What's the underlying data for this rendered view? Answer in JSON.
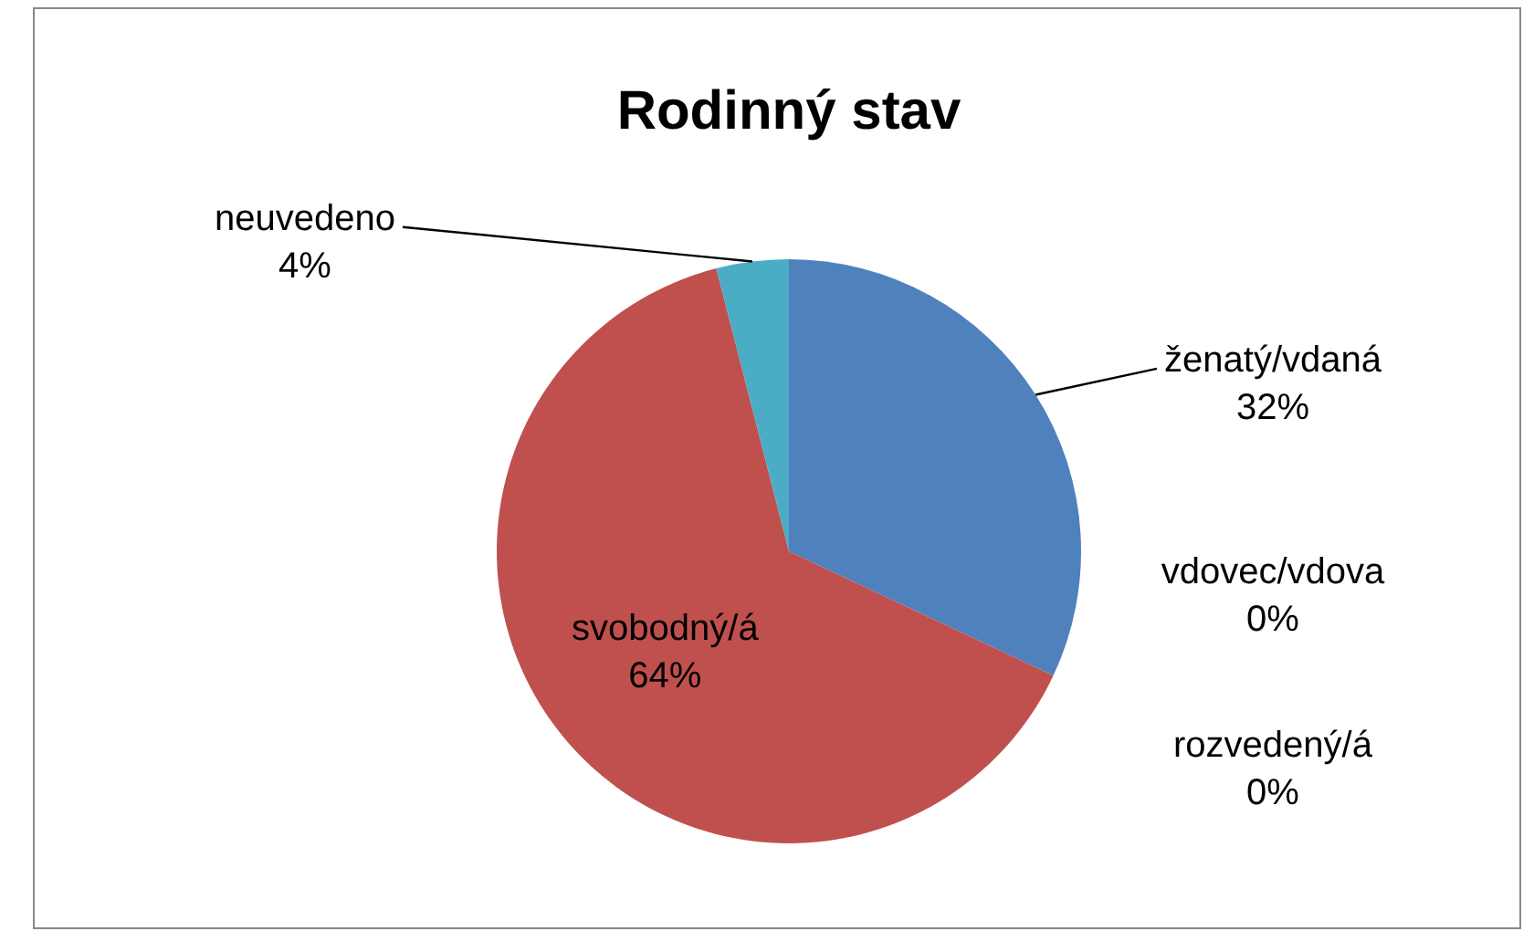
{
  "chart_data": {
    "type": "pie",
    "title": "Rodinný stav",
    "categories": [
      "ženatý/vdaná",
      "vdovec/vdova",
      "rozvedený/á",
      "svobodný/á",
      "neuvedeno"
    ],
    "values": [
      32,
      0,
      0,
      64,
      4
    ],
    "colors": [
      "#4f81bd",
      "#9bbb59",
      "#8064a2",
      "#c0504d",
      "#4bacc6"
    ],
    "value_labels": [
      "32%",
      "0%",
      "0%",
      "64%",
      "4%"
    ],
    "legend": false
  }
}
